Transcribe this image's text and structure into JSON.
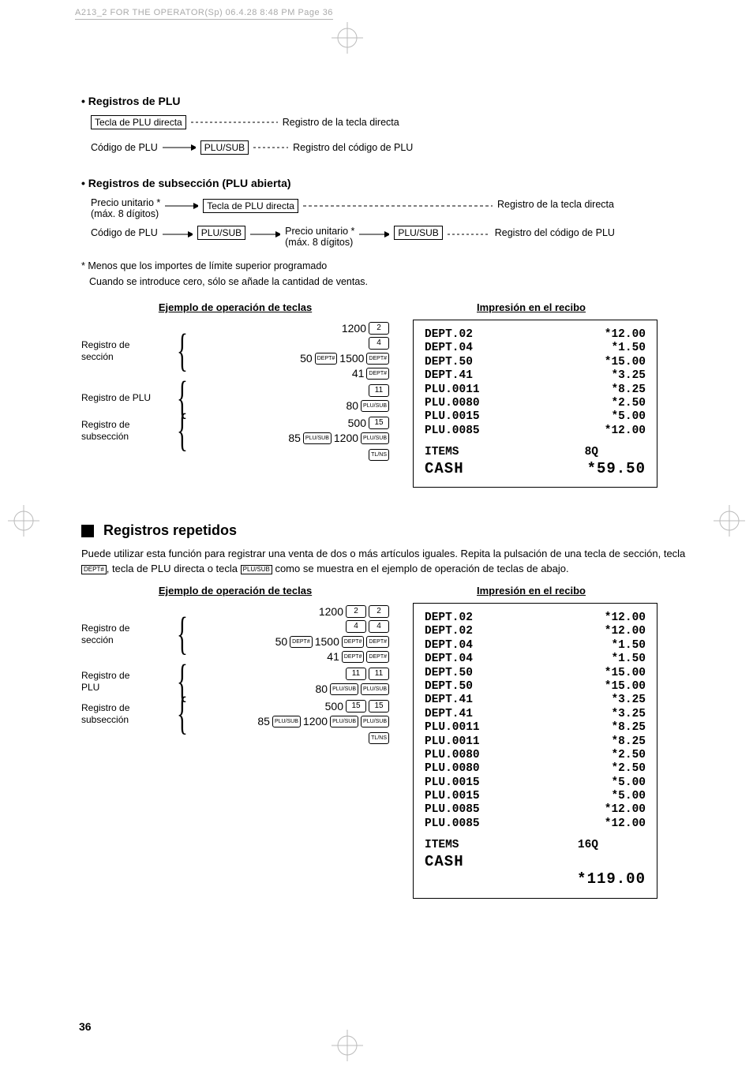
{
  "header": {
    "text": "A213_2 FOR THE OPERATOR(Sp)  06.4.28 8:48 PM  Page 36"
  },
  "section_plu": {
    "title": "• Registros de PLU",
    "directa_key": "Tecla de PLU directa",
    "directa_result": "Registro de la tecla directa",
    "codigo_label": "Código de PLU",
    "plusub_key": "PLU/SUB",
    "codigo_result": "Registro del código de PLU"
  },
  "section_sub": {
    "title": "• Registros de subsección (PLU abierta)",
    "precio_label": "Precio unitario *",
    "max_digits": "(máx. 8 dígitos)",
    "directa_key": "Tecla de PLU directa",
    "directa_result": "Registro de la tecla directa",
    "codigo_label": "Código de PLU",
    "plusub_key": "PLU/SUB",
    "precio2": "Precio unitario *",
    "codigo_result": "Registro del código de PLU",
    "note1": "* Menos que los importes de límite superior programado",
    "note2": "Cuando se introduce cero, sólo se añade la cantidad de ventas."
  },
  "table_headers": {
    "left": "Ejemplo de operación de teclas",
    "right": "Impresión en el recibo"
  },
  "example1": {
    "labels": {
      "seccion": "Registro de\nsección",
      "plu": "Registro de PLU",
      "subseccion": "Registro de\nsubsección"
    },
    "rows": {
      "r1_num": "1200",
      "r1_key": "2",
      "r2_key": "4",
      "r3_pre": "50",
      "r3_key1": "DEPT#",
      "r3_num": "1500",
      "r3_key2": "DEPT#",
      "r4_num": "41",
      "r4_key": "DEPT#",
      "r5_key": "11",
      "r6_num": "80",
      "r6_key": "PLU/SUB",
      "r7_num": "500",
      "r7_key": "15",
      "r8_pre": "85",
      "r8_key1": "PLU/SUB",
      "r8_num": "1200",
      "r8_key2": "PLU/SUB",
      "r9_key": "TL/NS"
    }
  },
  "receipt1": {
    "lines": [
      {
        "l": "DEPT.02",
        "r": "*12.00"
      },
      {
        "l": "DEPT.04",
        "r": "*1.50"
      },
      {
        "l": "DEPT.50",
        "r": "*15.00"
      },
      {
        "l": "DEPT.41",
        "r": "*3.25"
      },
      {
        "l": "PLU.0011",
        "r": "*8.25"
      },
      {
        "l": "PLU.0080",
        "r": "*2.50"
      },
      {
        "l": "PLU.0015",
        "r": "*5.00"
      },
      {
        "l": "PLU.0085",
        "r": "*12.00"
      }
    ],
    "items_l": "ITEMS",
    "items_r": "8Q",
    "cash_l": "CASH",
    "cash_r": "*59.50"
  },
  "section_repeat": {
    "heading": "Registros repetidos",
    "para_a": "Puede utilizar esta función para registrar una venta de dos o más artículos iguales. Repita la pulsación de una tecla de sección, tecla ",
    "key1": "DEPT#",
    "para_b": ", tecla de PLU directa o tecla ",
    "key2": "PLU/SUB",
    "para_c": " como se muestra en el ejemplo de operación de teclas de abajo."
  },
  "example2": {
    "labels": {
      "seccion": "Registro de\nsección",
      "plu": "Registro de\nPLU",
      "subseccion": "Registro de\nsubsección"
    },
    "rows": {
      "r1_num": "1200",
      "r1_k1": "2",
      "r1_k2": "2",
      "r2_k1": "4",
      "r2_k2": "4",
      "r3_pre": "50",
      "r3_k1": "DEPT#",
      "r3_num": "1500",
      "r3_k2": "DEPT#",
      "r3_k3": "DEPT#",
      "r4_num": "41",
      "r4_k1": "DEPT#",
      "r4_k2": "DEPT#",
      "r5_k1": "11",
      "r5_k2": "11",
      "r6_num": "80",
      "r6_k1": "PLU/SUB",
      "r6_k2": "PLU/SUB",
      "r7_num": "500",
      "r7_k1": "15",
      "r7_k2": "15",
      "r8_pre": "85",
      "r8_k1": "PLU/SUB",
      "r8_num": "1200",
      "r8_k2": "PLU/SUB",
      "r8_k3": "PLU/SUB",
      "r9_k": "TL/NS"
    }
  },
  "receipt2": {
    "lines": [
      {
        "l": "DEPT.02",
        "r": "*12.00"
      },
      {
        "l": "DEPT.02",
        "r": "*12.00"
      },
      {
        "l": "DEPT.04",
        "r": "*1.50"
      },
      {
        "l": "DEPT.04",
        "r": "*1.50"
      },
      {
        "l": "DEPT.50",
        "r": "*15.00"
      },
      {
        "l": "DEPT.50",
        "r": "*15.00"
      },
      {
        "l": "DEPT.41",
        "r": "*3.25"
      },
      {
        "l": "DEPT.41",
        "r": "*3.25"
      },
      {
        "l": "PLU.0011",
        "r": "*8.25"
      },
      {
        "l": "PLU.0011",
        "r": "*8.25"
      },
      {
        "l": "PLU.0080",
        "r": "*2.50"
      },
      {
        "l": "PLU.0080",
        "r": "*2.50"
      },
      {
        "l": "PLU.0015",
        "r": "*5.00"
      },
      {
        "l": "PLU.0015",
        "r": "*5.00"
      },
      {
        "l": "PLU.0085",
        "r": "*12.00"
      },
      {
        "l": "PLU.0085",
        "r": "*12.00"
      }
    ],
    "items_l": "ITEMS",
    "items_r": "16Q",
    "cash_l": "CASH",
    "cash_total": "*119.00"
  },
  "page_number": "36"
}
